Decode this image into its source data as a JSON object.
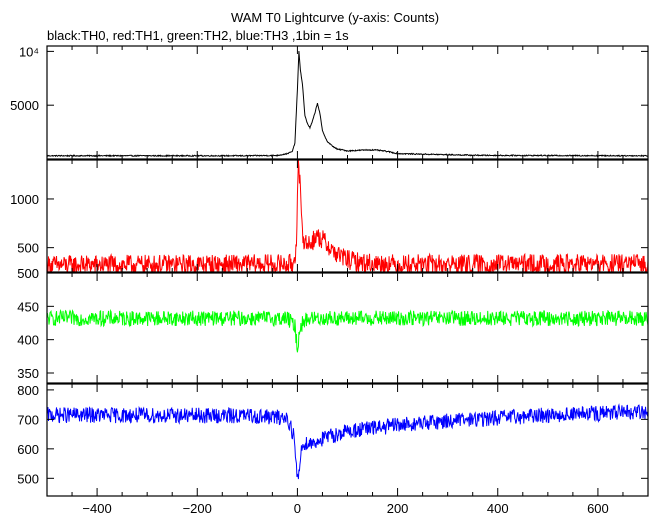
{
  "chart_data": {
    "type": "line",
    "title": "WAM T0 Lightcurve (y-axis: Counts)",
    "subtitle": "black:TH0, red:TH1, green:TH2, blue:TH3 ,1bin = 1s",
    "x_ticks": [
      -400,
      -200,
      0,
      200,
      400,
      600
    ],
    "xlim": [
      -500,
      700
    ],
    "panels": [
      {
        "name": "TH0",
        "color": "#000000",
        "ylim": [
          0,
          10500
        ],
        "y_ticks": [
          {
            "value": 5000,
            "label": "5000"
          },
          {
            "value": 10000,
            "label": "10⁴"
          }
        ],
        "x": [
          -500,
          -100,
          -40,
          -20,
          -10,
          -5,
          0,
          3,
          6,
          10,
          15,
          20,
          25,
          30,
          35,
          40,
          45,
          50,
          60,
          70,
          80,
          90,
          100,
          120,
          140,
          160,
          180,
          200,
          250,
          300,
          350,
          400,
          700
        ],
        "values": [
          300,
          300,
          330,
          500,
          700,
          1500,
          6500,
          10000,
          8200,
          7000,
          4000,
          3300,
          2900,
          3500,
          4300,
          5200,
          4200,
          2600,
          1600,
          1200,
          900,
          850,
          750,
          800,
          850,
          820,
          700,
          500,
          450,
          400,
          350,
          330,
          300
        ]
      },
      {
        "name": "TH1",
        "color": "#ff0000",
        "ylim": [
          250,
          1400
        ],
        "y_ticks": [
          {
            "value": 500,
            "label": "500"
          },
          {
            "value": 1000,
            "label": "1000"
          }
        ],
        "x": [
          -500,
          -10,
          -5,
          -2,
          0,
          2,
          5,
          8,
          12,
          15,
          20,
          30,
          40,
          50,
          60,
          70,
          80,
          100,
          120,
          150,
          200,
          700
        ],
        "values": [
          320,
          330,
          400,
          600,
          1000,
          1320,
          1150,
          800,
          600,
          560,
          530,
          570,
          620,
          580,
          530,
          470,
          430,
          380,
          350,
          340,
          330,
          330
        ]
      },
      {
        "name": "TH2",
        "color": "#00ff00",
        "ylim": [
          335,
          500
        ],
        "y_ticks": [
          {
            "value": 350,
            "label": "350"
          },
          {
            "value": 400,
            "label": "400"
          },
          {
            "value": 450,
            "label": "450"
          },
          {
            "value": 500,
            "label": "500"
          }
        ],
        "x": [
          -500,
          -20,
          -5,
          0,
          5,
          20,
          700
        ],
        "values": [
          432,
          432,
          420,
          385,
          420,
          432,
          432
        ]
      },
      {
        "name": "TH3",
        "color": "#0000ff",
        "ylim": [
          440,
          820
        ],
        "y_ticks": [
          {
            "value": 500,
            "label": "500"
          },
          {
            "value": 600,
            "label": "600"
          },
          {
            "value": 700,
            "label": "700"
          },
          {
            "value": 800,
            "label": "800"
          }
        ],
        "x": [
          -500,
          -100,
          -20,
          -8,
          -3,
          0,
          3,
          8,
          15,
          30,
          60,
          100,
          150,
          200,
          300,
          400,
          500,
          600,
          700
        ],
        "values": [
          715,
          712,
          705,
          650,
          560,
          490,
          520,
          600,
          620,
          620,
          640,
          660,
          670,
          680,
          695,
          705,
          715,
          720,
          725
        ]
      }
    ]
  }
}
